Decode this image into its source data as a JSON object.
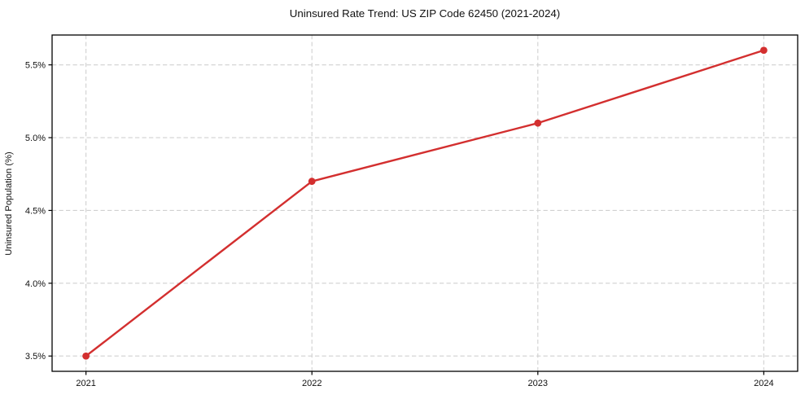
{
  "chart_data": {
    "type": "line",
    "title": "Uninsured Rate Trend: US ZIP Code 62450 (2021-2024)",
    "xlabel": "",
    "ylabel": "Uninsured Population (%)",
    "x": [
      2021,
      2022,
      2023,
      2024
    ],
    "values": [
      3.5,
      4.7,
      5.1,
      5.6
    ],
    "unit": "%",
    "xtick_values": [
      2021,
      2022,
      2023,
      2024
    ],
    "xtick_labels": [
      "2021",
      "2022",
      "2023",
      "2024"
    ],
    "ytick_values": [
      3.5,
      4.0,
      4.5,
      5.0,
      5.5
    ],
    "ytick_labels": [
      "3.5%",
      "4.0%",
      "4.5%",
      "5.0%",
      "5.5%"
    ],
    "xlim": [
      2020.85,
      2024.15
    ],
    "ylim": [
      3.395,
      5.705
    ],
    "grid": true,
    "grid_style": "dashed",
    "legend": "none",
    "colors": {
      "line": "#d32f2f",
      "marker": "#d32f2f",
      "grid": "#d0d0d0",
      "spine": "#000000",
      "text": "#111111",
      "background": "#ffffff"
    }
  }
}
